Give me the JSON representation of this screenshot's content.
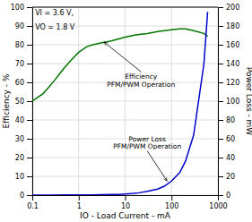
{
  "chart_data": {
    "type": "line",
    "log": "x",
    "grid": true,
    "xlabel": "IO - Load Current - mA",
    "ylabel": "Efficiency - %",
    "y2label": "Power Loss - mW",
    "xlim": [
      0.1,
      1000
    ],
    "xticks": [
      0.1,
      1,
      10,
      100,
      1000
    ],
    "ylim": [
      0,
      100
    ],
    "yticks": [
      0,
      10,
      20,
      30,
      40,
      50,
      60,
      70,
      80,
      90,
      100
    ],
    "y2lim": [
      0,
      200
    ],
    "y2ticks": [
      0,
      20,
      40,
      60,
      80,
      100,
      120,
      140,
      160,
      180,
      200
    ],
    "series": [
      {
        "color": "#007700",
        "x": [
          0.1,
          0.13,
          0.17,
          0.22,
          0.3,
          0.4,
          0.5,
          0.7,
          1.0,
          1.5,
          2.0,
          3.0,
          4.0,
          5.0,
          7.0,
          10.0,
          15.0,
          20.0,
          30.0,
          50.0,
          70.0,
          100.0,
          150.0,
          200.0,
          300.0,
          500.0,
          600.0
        ],
        "values": [
          50,
          52,
          54,
          57,
          61,
          65,
          68,
          72,
          76,
          79,
          80,
          81,
          81.5,
          82,
          83,
          84,
          85,
          85.5,
          86,
          87,
          87.5,
          88,
          88.5,
          88.5,
          87.5,
          86,
          84.5
        ]
      },
      {
        "color": "#0000cc",
        "axis": "y2",
        "x": [
          0.1,
          0.2,
          0.5,
          1.0,
          2.0,
          3.0,
          5.0,
          7.0,
          10.0,
          15.0,
          20.0,
          30.0,
          50.0,
          70.0,
          100.0,
          150.0,
          200.0,
          300.0,
          500.0,
          600.0
        ],
        "values": [
          0.1,
          0.1,
          0.15,
          0.25,
          0.35,
          0.45,
          0.6,
          0.8,
          1.2,
          1.8,
          2.5,
          4.0,
          6.5,
          9.5,
          15.0,
          24.0,
          36.0,
          64.0,
          140.0,
          195.0
        ]
      }
    ],
    "annotations": [
      {
        "text": "VI = 3.6 V,",
        "x": 0.115,
        "y": 99
      },
      {
        "text": "VO = 1.8 V",
        "x": 0.115,
        "y": 91.5
      },
      {
        "text": "Efficiency\nPFM/PWM Operation",
        "x": 22,
        "y": 65,
        "arrow_x": 3.5,
        "arrow_y": 81.5
      },
      {
        "text": "Power Loss\nPFM/PWM Operation",
        "x": 30,
        "y": 32,
        "arrow_x": 80,
        "arrow_y": 7.5
      }
    ]
  }
}
